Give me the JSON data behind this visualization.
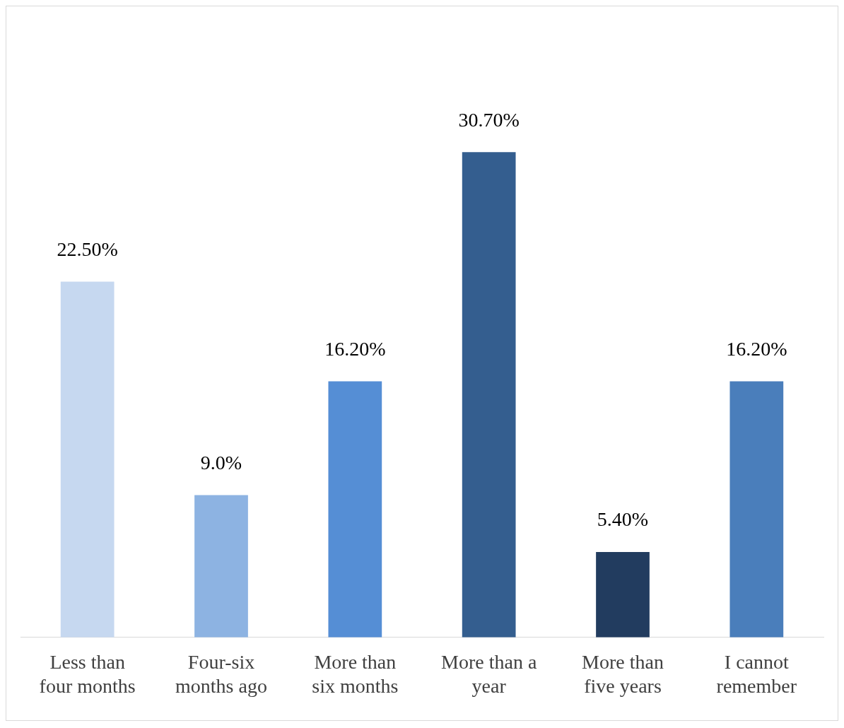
{
  "chart_data": {
    "type": "bar",
    "categories": [
      "Less than four months",
      "Four-six months ago",
      "More than six months",
      "More than a year",
      "More than five years",
      "I cannot remember"
    ],
    "values": [
      22.5,
      9.0,
      16.2,
      30.7,
      5.4,
      16.2
    ],
    "value_labels": [
      "22.50%",
      "9.0%",
      "16.20%",
      "30.70%",
      "5.40%",
      "16.20%"
    ],
    "colors": [
      "#c6d8f0",
      "#8db3e2",
      "#558ed5",
      "#345e8f",
      "#223c5f",
      "#4a7ebb"
    ],
    "grid": false,
    "legend": false
  }
}
